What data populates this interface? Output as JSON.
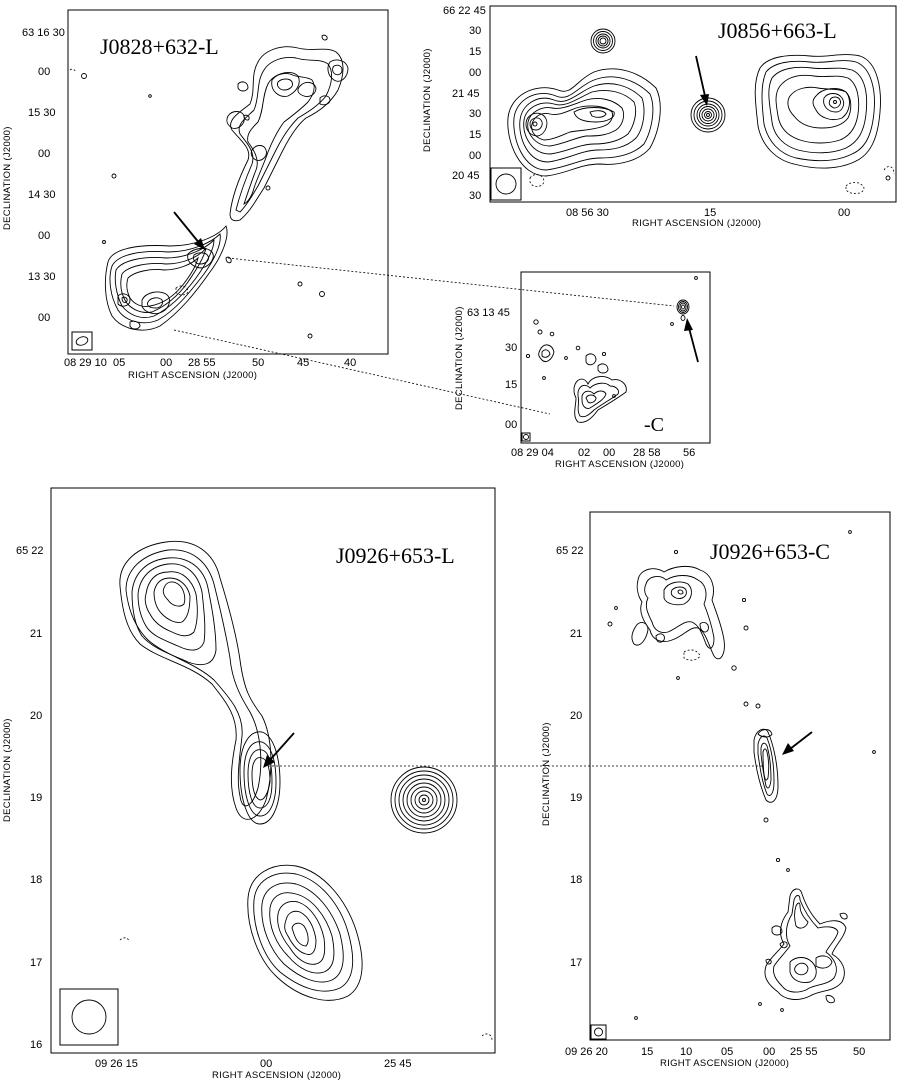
{
  "panels": {
    "p1": {
      "title": "J0828+632-L",
      "xlabel": "RIGHT ASCENSION (J2000)",
      "ylabel": "DECLINATION (J2000)",
      "xticks": [
        "08 29 10",
        "05",
        "00",
        "28 55",
        "50",
        "45",
        "40"
      ],
      "yticks": [
        "63 16 30",
        "00",
        "15 30",
        "00",
        "14 30",
        "00",
        "13 30",
        "00"
      ]
    },
    "p2": {
      "title": "J0856+663-L",
      "xlabel": "RIGHT ASCENSION (J2000)",
      "ylabel": "DECLINATION (J2000)",
      "xticks": [
        "08 56 30",
        "15",
        "00"
      ],
      "yticks": [
        "66 22 45",
        "30",
        "15",
        "00",
        "21 45",
        "30",
        "15",
        "00",
        "20 45",
        "30"
      ]
    },
    "p3": {
      "title": "-C",
      "xlabel": "RIGHT ASCENSION (J2000)",
      "ylabel": "DECLINATION (J2000)",
      "xticks": [
        "08 29 04",
        "02",
        "00",
        "28 58",
        "56"
      ],
      "yticks": [
        "63 13 45",
        "30",
        "15",
        "00"
      ]
    },
    "p4": {
      "title": "J0926+653-L",
      "xlabel": "RIGHT ASCENSION (J2000)",
      "ylabel": "DECLINATION (J2000)",
      "xticks": [
        "09 26 15",
        "00",
        "25 45"
      ],
      "yticks": [
        "65 22",
        "21",
        "20",
        "19",
        "18",
        "17",
        "16"
      ]
    },
    "p5": {
      "title": "J0926+653-C",
      "xlabel": "RIGHT ASCENSION (J2000)",
      "ylabel": "DECLINATION (J2000)",
      "xticks": [
        "09 26 20",
        "15",
        "10",
        "05",
        "00",
        "25 55",
        "50"
      ],
      "yticks": [
        "65 22",
        "21",
        "20",
        "19",
        "18",
        "17"
      ]
    }
  }
}
